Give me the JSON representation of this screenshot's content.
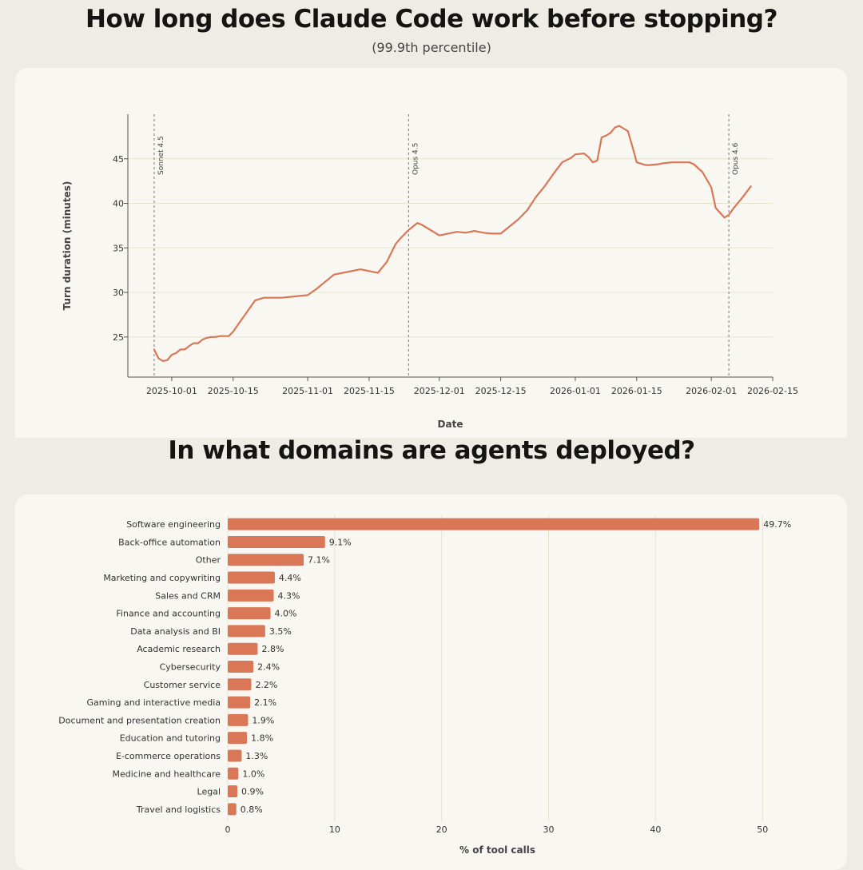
{
  "title": "How long does Claude Code work before stopping?",
  "subtitle": "(99.9th percentile)",
  "title2": "In what domains are agents deployed?",
  "colors": {
    "accent": "#D97757",
    "grid": "#E6E4CF",
    "background": "#EEEDE5",
    "panel": "#F8F7F1"
  },
  "chart_data": [
    {
      "type": "line",
      "title": "How long does Claude Code work before stopping?",
      "subtitle": "(99.9th percentile)",
      "xlabel": "Date",
      "ylabel": "Turn duration (minutes)",
      "xlim": [
        "2025-09-21",
        "2026-02-15"
      ],
      "ylim": [
        20.5,
        50
      ],
      "xticks": [
        "2025-10-01",
        "2025-10-15",
        "2025-11-01",
        "2025-11-15",
        "2025-12-01",
        "2025-12-15",
        "2026-01-01",
        "2026-01-15",
        "2026-02-01",
        "2026-02-15"
      ],
      "yticks": [
        25,
        30,
        35,
        40,
        45
      ],
      "grid": "horizontal",
      "annotations": [
        {
          "x": "2025-09-27",
          "label": "Sonnet 4.5"
        },
        {
          "x": "2025-11-24",
          "label": "Opus 4.5"
        },
        {
          "x": "2026-02-05",
          "label": "Opus 4.6"
        }
      ],
      "series": [
        {
          "x": [
            "2025-09-27",
            "2025-09-28",
            "2025-09-29",
            "2025-09-30",
            "2025-10-01",
            "2025-10-02",
            "2025-10-03",
            "2025-10-04",
            "2025-10-05",
            "2025-10-06",
            "2025-10-07",
            "2025-10-08",
            "2025-10-09",
            "2025-10-10",
            "2025-10-11",
            "2025-10-12",
            "2025-10-13",
            "2025-10-14",
            "2025-10-15",
            "2025-10-16",
            "2025-10-18",
            "2025-10-20",
            "2025-10-22",
            "2025-10-24",
            "2025-10-26",
            "2025-10-28",
            "2025-10-30",
            "2025-11-01",
            "2025-11-03",
            "2025-11-05",
            "2025-11-07",
            "2025-11-09",
            "2025-11-11",
            "2025-11-13",
            "2025-11-15",
            "2025-11-17",
            "2025-11-19",
            "2025-11-21",
            "2025-11-22",
            "2025-11-24",
            "2025-11-26",
            "2025-11-27",
            "2025-11-29",
            "2025-11-30",
            "2025-12-01",
            "2025-12-03",
            "2025-12-05",
            "2025-12-07",
            "2025-12-09",
            "2025-12-11",
            "2025-12-13",
            "2025-12-15",
            "2025-12-17",
            "2025-12-19",
            "2025-12-21",
            "2025-12-23",
            "2025-12-25",
            "2025-12-27",
            "2025-12-29",
            "2025-12-31",
            "2026-01-01",
            "2026-01-03",
            "2026-01-04",
            "2026-01-05",
            "2026-01-06",
            "2026-01-07",
            "2026-01-08",
            "2026-01-09",
            "2026-01-10",
            "2026-01-11",
            "2026-01-13",
            "2026-01-14",
            "2026-01-15",
            "2026-01-17",
            "2026-01-18",
            "2026-01-20",
            "2026-01-21",
            "2026-01-23",
            "2026-01-24",
            "2026-01-25",
            "2026-01-27",
            "2026-01-28",
            "2026-01-30",
            "2026-02-01",
            "2026-02-02",
            "2026-02-04",
            "2026-02-05",
            "2026-02-06",
            "2026-02-08",
            "2026-02-10"
          ],
          "y": [
            23.6,
            22.6,
            22.3,
            22.4,
            23.0,
            23.2,
            23.6,
            23.6,
            24.0,
            24.3,
            24.3,
            24.7,
            24.9,
            25.0,
            25.0,
            25.1,
            25.1,
            25.1,
            25.6,
            26.3,
            27.7,
            29.1,
            29.4,
            29.4,
            29.4,
            29.5,
            29.6,
            29.7,
            30.4,
            31.2,
            32.0,
            32.2,
            32.4,
            32.6,
            32.4,
            32.2,
            33.4,
            35.4,
            36.0,
            37.0,
            37.8,
            37.6,
            37.0,
            36.7,
            36.4,
            36.6,
            36.8,
            36.7,
            36.9,
            36.7,
            36.6,
            36.6,
            37.4,
            38.2,
            39.2,
            40.7,
            41.9,
            43.3,
            44.6,
            45.1,
            45.5,
            45.6,
            45.2,
            44.6,
            44.8,
            47.4,
            47.6,
            47.9,
            48.5,
            48.7,
            48.1,
            46.4,
            44.6,
            44.3,
            44.3,
            44.4,
            44.5,
            44.6,
            44.6,
            44.6,
            44.6,
            44.4,
            43.5,
            41.8,
            39.5,
            38.4,
            38.7,
            39.4,
            40.6,
            41.9
          ]
        }
      ]
    },
    {
      "type": "bar",
      "orientation": "horizontal",
      "title": "In what domains are agents deployed?",
      "xlabel": "% of tool calls",
      "xlim": [
        0,
        52
      ],
      "xticks": [
        0,
        10,
        20,
        30,
        40,
        50
      ],
      "grid": "vertical",
      "categories": [
        "Software engineering",
        "Back-office automation",
        "Other",
        "Marketing and copywriting",
        "Sales and CRM",
        "Finance and accounting",
        "Data analysis and BI",
        "Academic research",
        "Cybersecurity",
        "Customer service",
        "Gaming and interactive media",
        "Document and presentation creation",
        "Education and tutoring",
        "E-commerce operations",
        "Medicine and healthcare",
        "Legal",
        "Travel and logistics"
      ],
      "values": [
        49.7,
        9.1,
        7.1,
        4.4,
        4.3,
        4.0,
        3.5,
        2.8,
        2.4,
        2.2,
        2.1,
        1.9,
        1.8,
        1.3,
        1.0,
        0.9,
        0.8
      ],
      "value_labels": [
        "49.7%",
        "9.1%",
        "7.1%",
        "4.4%",
        "4.3%",
        "4.0%",
        "3.5%",
        "2.8%",
        "2.4%",
        "2.2%",
        "2.1%",
        "1.9%",
        "1.8%",
        "1.3%",
        "1.0%",
        "0.9%",
        "0.8%"
      ]
    }
  ]
}
